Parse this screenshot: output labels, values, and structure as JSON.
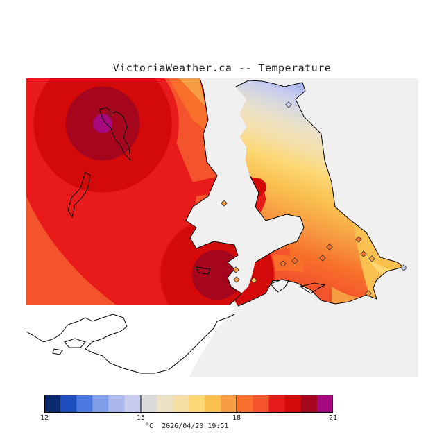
{
  "title": "VictoriaWeather.ca -- Temperature",
  "colorbar": {
    "ticks": [
      "12",
      "15",
      "18",
      "21"
    ],
    "colors": [
      "#0b2a6e",
      "#1f4fbf",
      "#4a78df",
      "#7f9ee8",
      "#aab8ee",
      "#c8cdf0",
      "#dadada",
      "#eee2c6",
      "#f6dfa4",
      "#fcd774",
      "#f9c050",
      "#f79d42",
      "#f76f2a",
      "#f4542c",
      "#e91a1a",
      "#d40a0a",
      "#a5061e",
      "#a6087f"
    ]
  },
  "footer": {
    "unit": "°C",
    "timestamp": "2026/04/20 19:51"
  }
}
